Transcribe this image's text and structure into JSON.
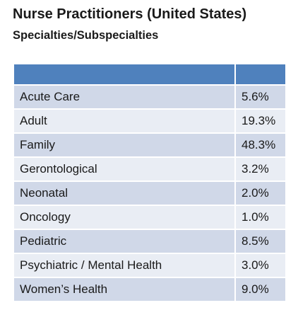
{
  "header": {
    "title": "Nurse Practitioners (United States)",
    "subtitle": "Specialties/Subspecialties"
  },
  "table": {
    "rows": [
      [
        "Acute Care",
        "5.6%"
      ],
      [
        "Adult",
        "19.3%"
      ],
      [
        "Family",
        "48.3%"
      ],
      [
        "Gerontological",
        "3.2%"
      ],
      [
        "Neonatal",
        "2.0%"
      ],
      [
        "Oncology",
        "1.0%"
      ],
      [
        "Pediatric",
        "8.5%"
      ],
      [
        "Psychiatric / Mental Health",
        "3.0%"
      ],
      [
        "Women’s Health",
        "9.0%"
      ]
    ]
  }
}
